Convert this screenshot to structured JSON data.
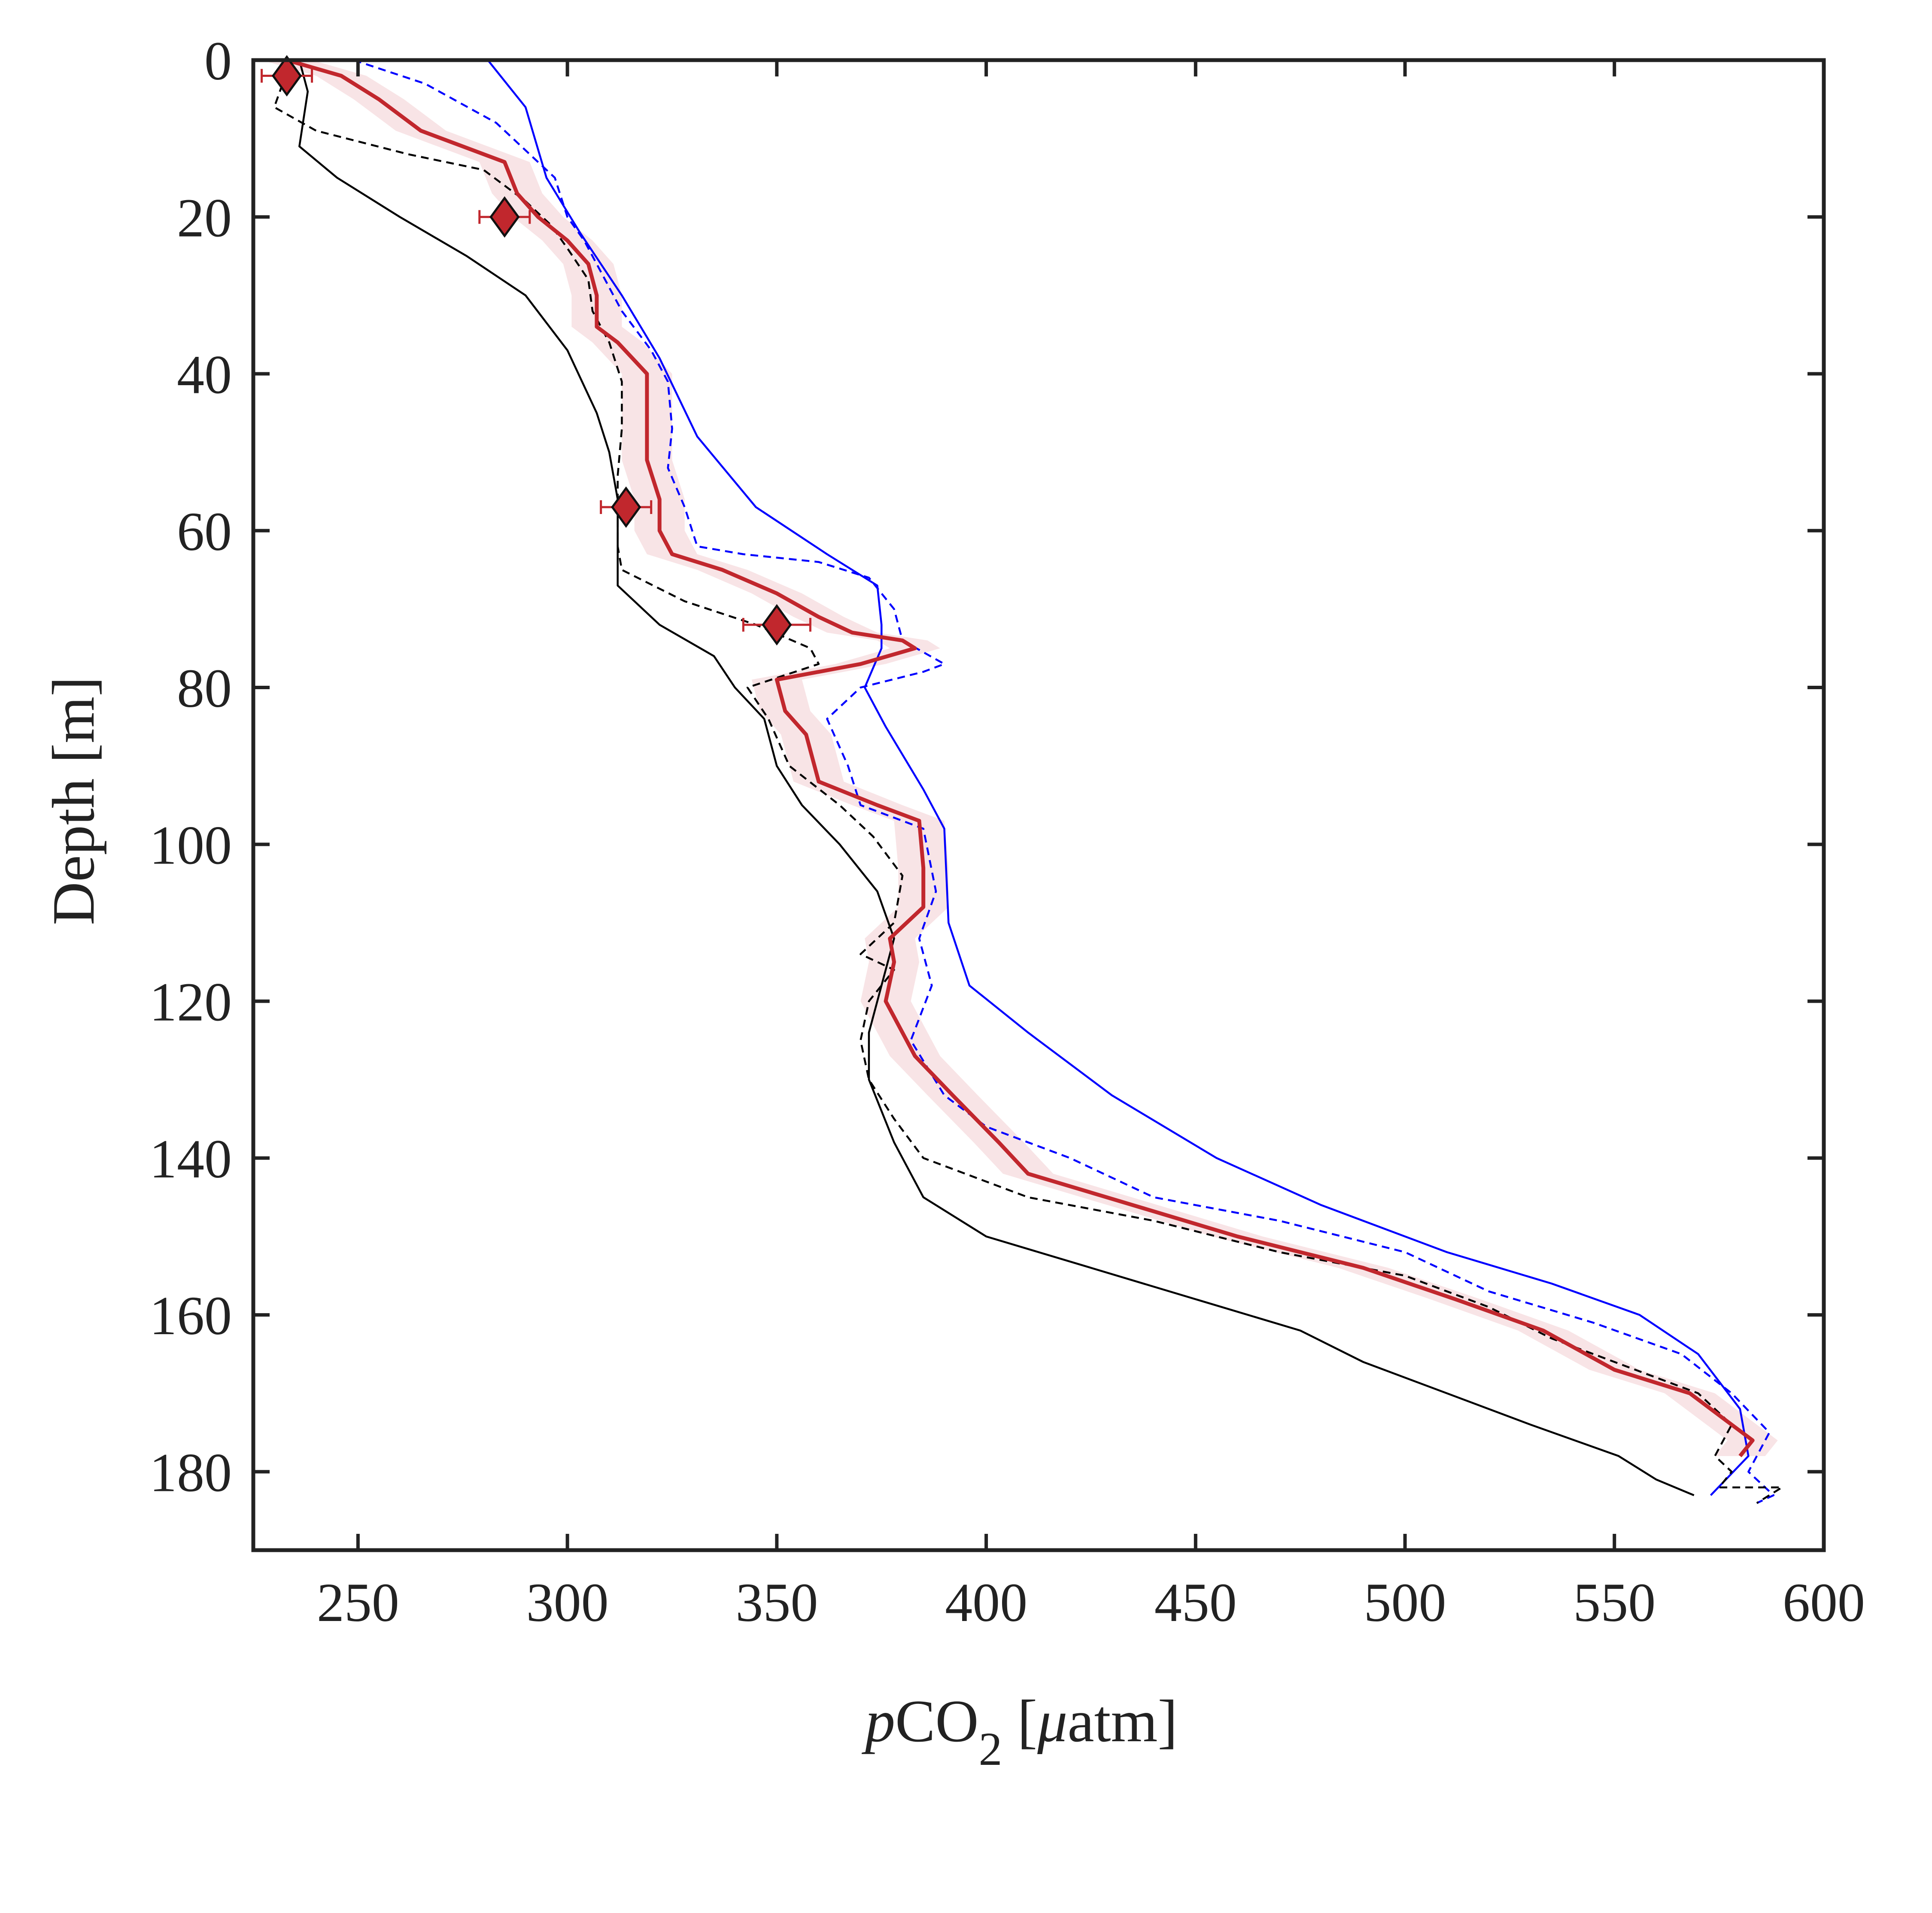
{
  "chart_data": {
    "type": "line",
    "title": "",
    "xlabel": {
      "italic": "p",
      "main": "CO",
      "subscript": "2",
      "suffix": " [",
      "mu": "μ",
      "unit": "atm]"
    },
    "ylabel": "Depth [m]",
    "xlim": [
      225,
      600
    ],
    "ylim": [
      0,
      190
    ],
    "y_reversed": true,
    "x_ticks": [
      250,
      300,
      350,
      400,
      450,
      500,
      550,
      600
    ],
    "y_ticks": [
      0,
      20,
      40,
      60,
      80,
      100,
      120,
      140,
      160,
      180
    ],
    "grid": false,
    "legend": "none",
    "series": [
      {
        "style": "solid",
        "color": "#0000ff",
        "points": [
          [
            281,
            0
          ],
          [
            290,
            6
          ],
          [
            295,
            15
          ],
          [
            303,
            22
          ],
          [
            313,
            30
          ],
          [
            322,
            38
          ],
          [
            331,
            48
          ],
          [
            345,
            57
          ],
          [
            362,
            63
          ],
          [
            374,
            67
          ],
          [
            375,
            72
          ],
          [
            375,
            75
          ],
          [
            371,
            80
          ],
          [
            376,
            85
          ],
          [
            385,
            93
          ],
          [
            390,
            98
          ],
          [
            391,
            110
          ],
          [
            396,
            118
          ],
          [
            410,
            124
          ],
          [
            430,
            132
          ],
          [
            455,
            140
          ],
          [
            480,
            146
          ],
          [
            510,
            152
          ],
          [
            535,
            156
          ],
          [
            556,
            160
          ],
          [
            570,
            165
          ],
          [
            580,
            172
          ],
          [
            582,
            178
          ],
          [
            573,
            183
          ]
        ]
      },
      {
        "style": "dashed",
        "color": "#0000ff",
        "points": [
          [
            249,
            0
          ],
          [
            266,
            3
          ],
          [
            283,
            8
          ],
          [
            291,
            12
          ],
          [
            297,
            15
          ],
          [
            300,
            20
          ],
          [
            304,
            23
          ],
          [
            308,
            27
          ],
          [
            313,
            32
          ],
          [
            320,
            37
          ],
          [
            324,
            41
          ],
          [
            325,
            47
          ],
          [
            324,
            52
          ],
          [
            328,
            57
          ],
          [
            331,
            62
          ],
          [
            342,
            63
          ],
          [
            360,
            64
          ],
          [
            372,
            66
          ],
          [
            378,
            70
          ],
          [
            380,
            74
          ],
          [
            390,
            77
          ],
          [
            385,
            78
          ],
          [
            370,
            80
          ],
          [
            362,
            84
          ],
          [
            367,
            90
          ],
          [
            370,
            95
          ],
          [
            385,
            98
          ],
          [
            388,
            106
          ],
          [
            384,
            112
          ],
          [
            387,
            118
          ],
          [
            382,
            125
          ],
          [
            390,
            132
          ],
          [
            400,
            136
          ],
          [
            420,
            140
          ],
          [
            440,
            145
          ],
          [
            470,
            148
          ],
          [
            500,
            152
          ],
          [
            520,
            157
          ],
          [
            545,
            161
          ],
          [
            566,
            165
          ],
          [
            578,
            170
          ],
          [
            587,
            175
          ],
          [
            582,
            180
          ],
          [
            588,
            183
          ],
          [
            584,
            184
          ]
        ]
      },
      {
        "style": "dashed",
        "color": "#000000",
        "points": [
          [
            234,
            0
          ],
          [
            230,
            6
          ],
          [
            240,
            9
          ],
          [
            262,
            12
          ],
          [
            280,
            14
          ],
          [
            290,
            18
          ],
          [
            296,
            21
          ],
          [
            300,
            24
          ],
          [
            305,
            28
          ],
          [
            306,
            32
          ],
          [
            310,
            36
          ],
          [
            313,
            41
          ],
          [
            313,
            47
          ],
          [
            312,
            53
          ],
          [
            312,
            58
          ],
          [
            312,
            62
          ],
          [
            313,
            65
          ],
          [
            328,
            69
          ],
          [
            345,
            72
          ],
          [
            358,
            75
          ],
          [
            360,
            77
          ],
          [
            343,
            80
          ],
          [
            348,
            84
          ],
          [
            353,
            90
          ],
          [
            365,
            95
          ],
          [
            373,
            99
          ],
          [
            380,
            104
          ],
          [
            378,
            110
          ],
          [
            370,
            114
          ],
          [
            378,
            116
          ],
          [
            372,
            120
          ],
          [
            370,
            125
          ],
          [
            372,
            130
          ],
          [
            378,
            135
          ],
          [
            385,
            140
          ],
          [
            410,
            145
          ],
          [
            440,
            148
          ],
          [
            470,
            152
          ],
          [
            500,
            155
          ],
          [
            520,
            159
          ],
          [
            535,
            163
          ],
          [
            555,
            167
          ],
          [
            570,
            170
          ],
          [
            578,
            174
          ],
          [
            574,
            178
          ],
          [
            578,
            180
          ],
          [
            575,
            182
          ],
          [
            590,
            182
          ],
          [
            584,
            184
          ]
        ]
      },
      {
        "style": "solid",
        "color": "#000000",
        "points": [
          [
            236,
            0
          ],
          [
            238,
            4
          ],
          [
            236,
            11
          ],
          [
            245,
            15
          ],
          [
            260,
            20
          ],
          [
            276,
            25
          ],
          [
            290,
            30
          ],
          [
            300,
            37
          ],
          [
            307,
            45
          ],
          [
            310,
            50
          ],
          [
            312,
            56
          ],
          [
            312,
            62
          ],
          [
            312,
            67
          ],
          [
            322,
            72
          ],
          [
            335,
            76
          ],
          [
            340,
            80
          ],
          [
            347,
            84
          ],
          [
            350,
            90
          ],
          [
            356,
            95
          ],
          [
            365,
            100
          ],
          [
            374,
            106
          ],
          [
            378,
            112
          ],
          [
            375,
            118
          ],
          [
            372,
            124
          ],
          [
            372,
            130
          ],
          [
            378,
            138
          ],
          [
            385,
            145
          ],
          [
            400,
            150
          ],
          [
            425,
            154
          ],
          [
            450,
            158
          ],
          [
            475,
            162
          ],
          [
            490,
            166
          ],
          [
            510,
            170
          ],
          [
            530,
            174
          ],
          [
            551,
            178
          ],
          [
            560,
            181
          ],
          [
            569,
            183
          ]
        ]
      },
      {
        "style": "solid",
        "color": "#c1272d",
        "band": 6,
        "points": [
          [
            233,
            0
          ],
          [
            246,
            2
          ],
          [
            255,
            5
          ],
          [
            265,
            9
          ],
          [
            275,
            11
          ],
          [
            285,
            13
          ],
          [
            288,
            17
          ],
          [
            293,
            20
          ],
          [
            300,
            23
          ],
          [
            305,
            26
          ],
          [
            307,
            30
          ],
          [
            307,
            34
          ],
          [
            312,
            36
          ],
          [
            319,
            40
          ],
          [
            319,
            45
          ],
          [
            319,
            51
          ],
          [
            322,
            56
          ],
          [
            322,
            60
          ],
          [
            325,
            63
          ],
          [
            337,
            65
          ],
          [
            350,
            68
          ],
          [
            360,
            71
          ],
          [
            368,
            73
          ],
          [
            380,
            74
          ],
          [
            383,
            75
          ],
          [
            370,
            77
          ],
          [
            350,
            79
          ],
          [
            352,
            83
          ],
          [
            357,
            86
          ],
          [
            360,
            92
          ],
          [
            374,
            95
          ],
          [
            384,
            97
          ],
          [
            385,
            103
          ],
          [
            385,
            108
          ],
          [
            377,
            112
          ],
          [
            378,
            115
          ],
          [
            376,
            120
          ],
          [
            383,
            127
          ],
          [
            392,
            132
          ],
          [
            403,
            138
          ],
          [
            410,
            142
          ],
          [
            435,
            146
          ],
          [
            460,
            150
          ],
          [
            490,
            154
          ],
          [
            512,
            158
          ],
          [
            533,
            162
          ],
          [
            550,
            167
          ],
          [
            568,
            170
          ],
          [
            578,
            174
          ],
          [
            583,
            176
          ],
          [
            580,
            178
          ]
        ]
      }
    ],
    "observations": [
      {
        "x": 233,
        "y": 2,
        "xerr": 6
      },
      {
        "x": 285,
        "y": 20,
        "xerr": 6
      },
      {
        "x": 314,
        "y": 57,
        "xerr": 6
      },
      {
        "x": 350,
        "y": 72,
        "xerr": 8
      }
    ],
    "colors": {
      "model_mean": "#c1272d",
      "band": "#f8e4e6",
      "axis": "#222222"
    }
  }
}
